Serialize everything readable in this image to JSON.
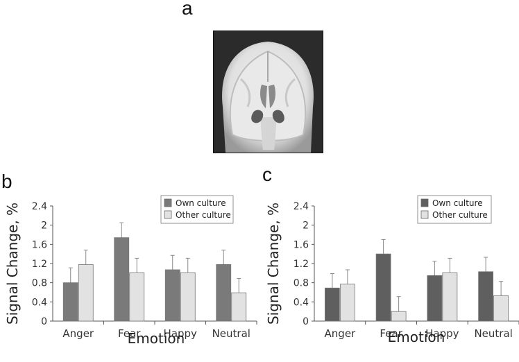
{
  "panels": {
    "a": "a",
    "b": "b",
    "c": "c"
  },
  "chart_data": [
    {
      "panel": "b",
      "type": "bar",
      "categories": [
        "Anger",
        "Fear",
        "Happy",
        "Neutral"
      ],
      "series": [
        {
          "name": "Own culture",
          "values": [
            0.8,
            1.74,
            1.07,
            1.18
          ],
          "errors": [
            0.31,
            0.31,
            0.3,
            0.3
          ],
          "color": "#7a7a7a"
        },
        {
          "name": "Other culture",
          "values": [
            1.18,
            1.01,
            1.01,
            0.59
          ],
          "errors": [
            0.3,
            0.3,
            0.3,
            0.3
          ],
          "color": "#e2e2e2"
        }
      ],
      "xlabel": "Emotion",
      "ylabel": "Signal Change, %",
      "ylim": [
        0,
        2.4
      ],
      "yticks": [
        "0",
        "0.4",
        "0.8",
        "1.2",
        "1.6",
        "2",
        "2.4"
      ],
      "legend_position": "top-right"
    },
    {
      "panel": "c",
      "type": "bar",
      "categories": [
        "Anger",
        "Fear",
        "Happy",
        "Neutral"
      ],
      "series": [
        {
          "name": "Own culture",
          "values": [
            0.69,
            1.4,
            0.95,
            1.03
          ],
          "errors": [
            0.3,
            0.3,
            0.3,
            0.3
          ],
          "color": "#5f5f5f"
        },
        {
          "name": "Other culture",
          "values": [
            0.77,
            0.2,
            1.01,
            0.53
          ],
          "errors": [
            0.3,
            0.31,
            0.3,
            0.3
          ],
          "color": "#e2e2e2"
        }
      ],
      "xlabel": "Emotion",
      "ylabel": "Signal Change, %",
      "ylim": [
        0,
        2.4
      ],
      "yticks": [
        "0",
        "0.4",
        "0.8",
        "1.2",
        "1.6",
        "2",
        "2.4"
      ],
      "legend_position": "top-right"
    }
  ]
}
